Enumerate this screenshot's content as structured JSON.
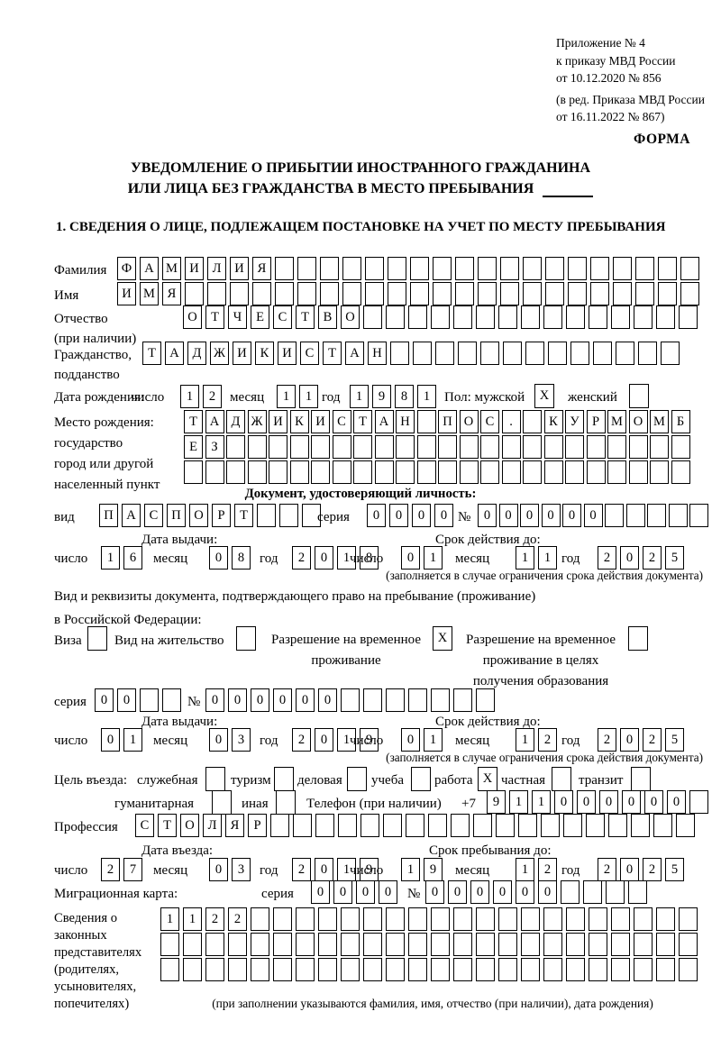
{
  "header": {
    "appendix": [
      "Приложение № 4",
      "к приказу МВД России",
      "от 10.12.2020 № 856"
    ],
    "amendment": [
      "(в ред. Приказа МВД России",
      "от 16.11.2022 № 867)"
    ],
    "form_label": "ФОРМА"
  },
  "title": {
    "line1": "УВЕДОМЛЕНИЕ О ПРИБЫТИИ ИНОСТРАННОГО ГРАЖДАНИНА",
    "line2": "ИЛИ ЛИЦА БЕЗ ГРАЖДАНСТВА В МЕСТО ПРЕБЫВАНИЯ"
  },
  "section1_heading": "1. СВЕДЕНИЯ О ЛИЦЕ, ПОДЛЕЖАЩЕМ ПОСТАНОВКЕ НА УЧЕТ ПО МЕСТУ ПРЕБЫВАНИЯ",
  "shared": {
    "day": "число",
    "month": "месяц",
    "year": "год"
  },
  "person": {
    "surname": {
      "label": "Фамилия",
      "value": "ФАМИЛИЯ",
      "cells": 26
    },
    "name": {
      "label": "Имя",
      "value": "ИМЯ",
      "cells": 26
    },
    "patronymic": {
      "label": "Отчество",
      "note": "(при наличии)",
      "value": "ОТЧЕСТВО",
      "cells": 23
    },
    "citizenship": {
      "label1": "Гражданство,",
      "label2": "подданство",
      "value": "ТАДЖИКИСТАН",
      "cells": 24
    },
    "birth": {
      "label": "Дата рождения:",
      "day": "12",
      "month": "11",
      "year": "1981",
      "gender_label": "Пол: мужской",
      "male_checked": "X",
      "female_label": "женский",
      "female_checked": " "
    },
    "birth_place": {
      "labels": [
        "Место рождения:",
        "государство",
        "город или другой",
        "населенный пункт"
      ],
      "row1": {
        "value": "ТАДЖИКИСТАН ПОС. КУРМОМБ",
        "cells": 24
      },
      "row2": {
        "value": "ЕЗ",
        "cells": 24
      },
      "row3": {
        "value": "",
        "cells": 24
      }
    }
  },
  "identity_doc": {
    "heading": "Документ, удостоверяющий личность:",
    "type_label": "вид",
    "type": {
      "value": "ПАСПОРТ",
      "cells": 10
    },
    "series_label": "серия",
    "series": {
      "value": "0000",
      "cells": 4
    },
    "number_label": "№",
    "number": {
      "value": "000000",
      "cells": 11
    },
    "issue_label": "Дата выдачи:",
    "expiry_label": "Срок действия до:",
    "issue": {
      "day": "16",
      "month": "08",
      "year": "2018"
    },
    "expiry": {
      "day": "01",
      "month": "11",
      "year": "2025"
    },
    "note": "(заполняется в случае ограничения срока действия документа)"
  },
  "residence_doc": {
    "intro1": "Вид и реквизиты документа, подтверждающего право на пребывание (проживание)",
    "intro2": "в Российской Федерации:",
    "visa_label": "Виза",
    "visa_checked": " ",
    "residence_permit_label": "Вид на жительство",
    "residence_permit_checked": " ",
    "temp_permit_label": [
      "Разрешение на временное",
      "проживание"
    ],
    "temp_permit_checked": "X",
    "edu_permit_label": [
      "Разрешение на временное",
      "проживание в целях",
      "получения образования"
    ],
    "edu_permit_checked": " ",
    "series_label": "серия",
    "series": {
      "value": "00",
      "cells": 4
    },
    "number_label": "№",
    "number": {
      "value": "000000",
      "cells": 13
    },
    "issue_label": "Дата выдачи:",
    "expiry_label": "Срок действия до:",
    "issue": {
      "day": "01",
      "month": "03",
      "year": "2019"
    },
    "expiry": {
      "day": "01",
      "month": "12",
      "year": "2025"
    },
    "note": "(заполняется в случае ограничения срока действия документа)"
  },
  "visit": {
    "purpose_label": "Цель въезда:",
    "opt_business": "служебная",
    "business_checked": " ",
    "opt_tourism": "туризм",
    "tourism_checked": " ",
    "opt_commercial": "деловая",
    "commercial_checked": " ",
    "opt_study": "учеба",
    "study_checked": " ",
    "opt_work": "работа",
    "work_checked": "X",
    "opt_private": "частная",
    "private_checked": " ",
    "opt_transit": "транзит",
    "transit_checked": " ",
    "opt_humanitarian": "гуманитарная",
    "humanitarian_checked": " ",
    "opt_other": "иная",
    "other_checked": " ",
    "phone_label": "Телефон (при наличии)",
    "phone_prefix": "+7",
    "phone": {
      "value": "911000000",
      "cells": 10
    },
    "profession_label": "Профессия",
    "profession": {
      "value": "СТОЛЯР",
      "cells": 25
    },
    "entry_label": "Дата въезда:",
    "stay_label": "Срок пребывания до:",
    "entry": {
      "day": "27",
      "month": "03",
      "year": "2019"
    },
    "stay": {
      "day": "19",
      "month": "12",
      "year": "2025"
    },
    "migration_card_label": "Миграционная карта:",
    "mc_series_label": "серия",
    "mc_series": {
      "value": "0000",
      "cells": 4
    },
    "mc_number_label": "№",
    "mc_number": {
      "value": "000000",
      "cells": 10
    }
  },
  "representatives": {
    "labels": [
      "Сведения о",
      "законных",
      "представителях",
      "(родителях,",
      "усыновителях,",
      "попечителях)"
    ],
    "row1": {
      "value": "1122",
      "cells": 24
    },
    "row2": {
      "value": "",
      "cells": 24
    },
    "row3": {
      "value": "",
      "cells": 24
    },
    "note": "(при заполнении указываются фамилия, имя, отчество (при наличии), дата рождения)"
  }
}
